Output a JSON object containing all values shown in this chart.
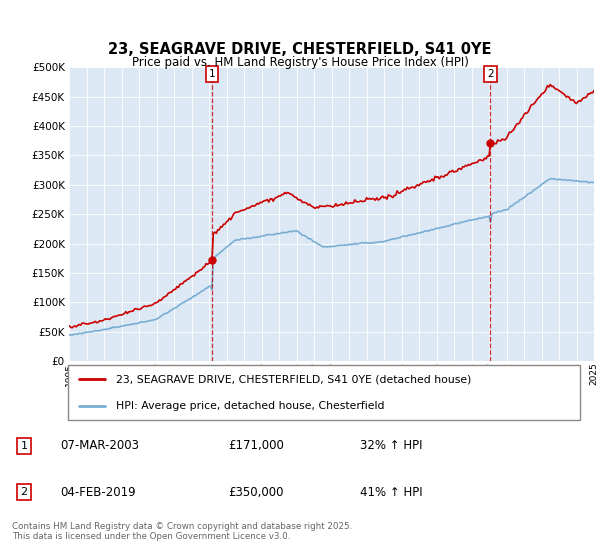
{
  "title": "23, SEAGRAVE DRIVE, CHESTERFIELD, S41 0YE",
  "subtitle": "Price paid vs. HM Land Registry's House Price Index (HPI)",
  "legend_line1": "23, SEAGRAVE DRIVE, CHESTERFIELD, S41 0YE (detached house)",
  "legend_line2": "HPI: Average price, detached house, Chesterfield",
  "annotation1": {
    "num": "1",
    "date": "07-MAR-2003",
    "price": "£171,000",
    "pct": "32% ↑ HPI"
  },
  "annotation2": {
    "num": "2",
    "date": "04-FEB-2019",
    "price": "£350,000",
    "pct": "41% ↑ HPI"
  },
  "footer": "Contains HM Land Registry data © Crown copyright and database right 2025.\nThis data is licensed under the Open Government Licence v3.0.",
  "chart_bg": "#dce9f5",
  "hpi_color": "#7aadd4",
  "price_color": "#cc0000",
  "ylim": [
    0,
    500000
  ],
  "yticks": [
    0,
    50000,
    100000,
    150000,
    200000,
    250000,
    300000,
    350000,
    400000,
    450000,
    500000
  ],
  "year_start": 1995,
  "year_end": 2025
}
